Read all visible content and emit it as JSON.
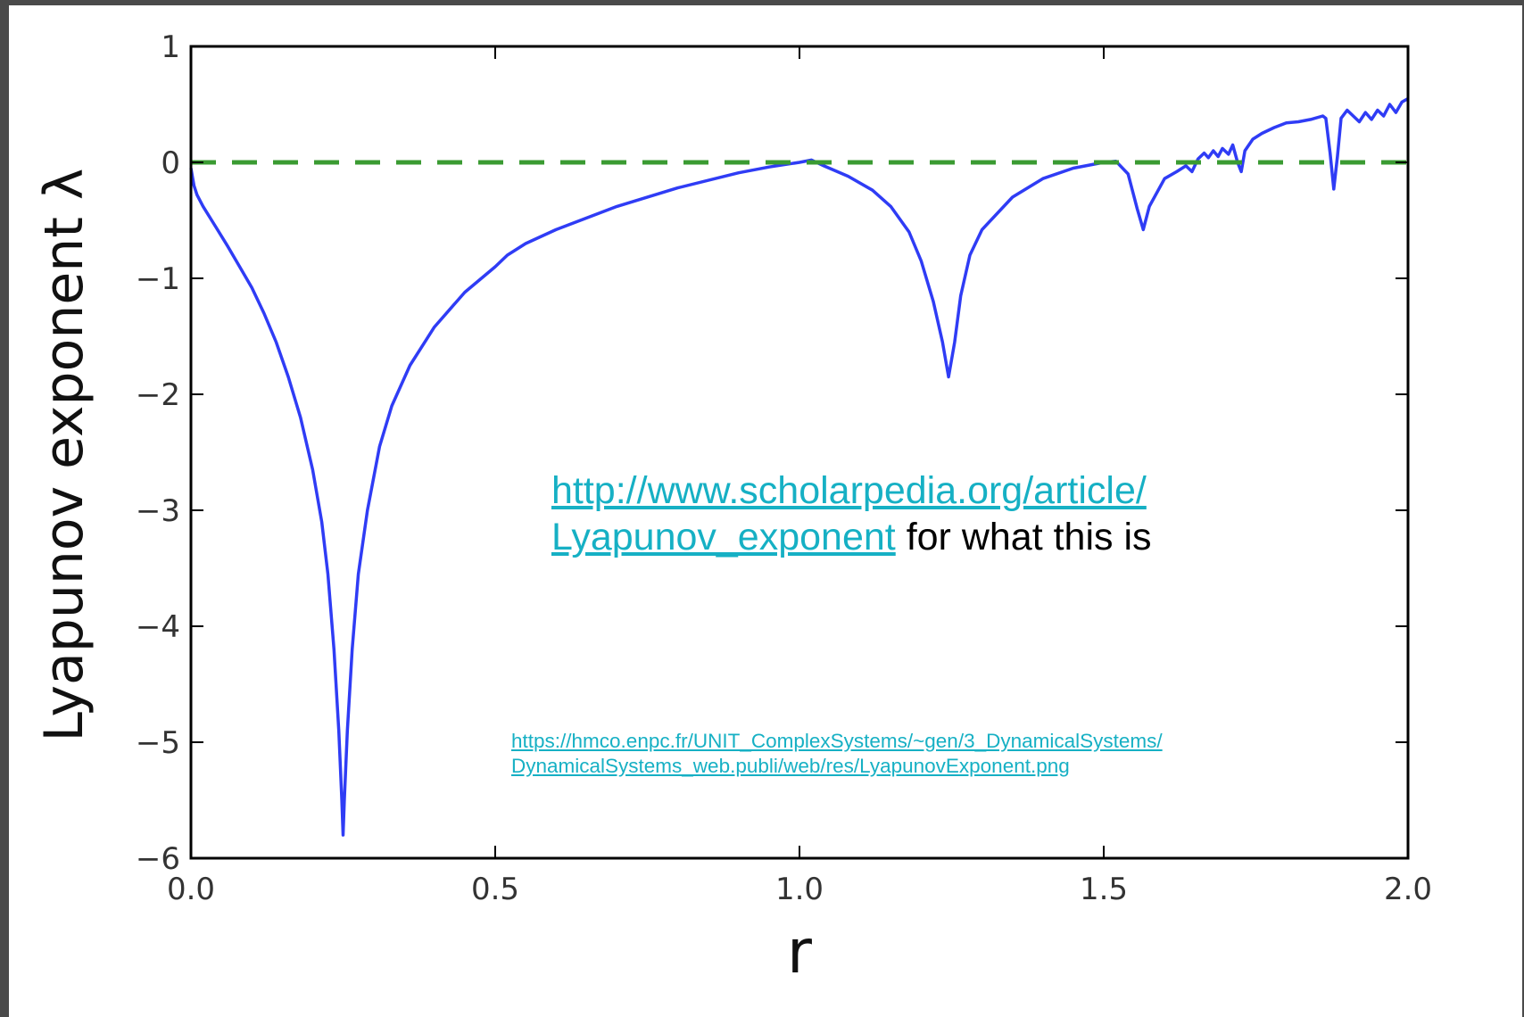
{
  "chart_data": {
    "type": "line",
    "xlabel": "r",
    "ylabel": "Lyapunov exponent λ",
    "xlim": [
      0,
      2
    ],
    "ylim": [
      -6,
      1
    ],
    "x_ticks": [
      "0.0",
      "0.5",
      "1.0",
      "1.5",
      "2.0"
    ],
    "y_ticks": [
      "−6",
      "−5",
      "−4",
      "−3",
      "−2",
      "−1",
      "0",
      "1"
    ],
    "grid": false,
    "series": [
      {
        "color": "#2f3cf5",
        "points": [
          [
            0.0,
            -0.05
          ],
          [
            0.005,
            -0.2
          ],
          [
            0.01,
            -0.28
          ],
          [
            0.02,
            -0.38
          ],
          [
            0.04,
            -0.55
          ],
          [
            0.06,
            -0.72
          ],
          [
            0.08,
            -0.9
          ],
          [
            0.1,
            -1.08
          ],
          [
            0.12,
            -1.3
          ],
          [
            0.14,
            -1.55
          ],
          [
            0.16,
            -1.85
          ],
          [
            0.18,
            -2.2
          ],
          [
            0.2,
            -2.65
          ],
          [
            0.215,
            -3.1
          ],
          [
            0.225,
            -3.55
          ],
          [
            0.235,
            -4.2
          ],
          [
            0.243,
            -4.9
          ],
          [
            0.248,
            -5.5
          ],
          [
            0.25,
            -5.8
          ],
          [
            0.252,
            -5.5
          ],
          [
            0.257,
            -4.9
          ],
          [
            0.265,
            -4.2
          ],
          [
            0.275,
            -3.55
          ],
          [
            0.29,
            -3.0
          ],
          [
            0.31,
            -2.45
          ],
          [
            0.33,
            -2.1
          ],
          [
            0.36,
            -1.75
          ],
          [
            0.4,
            -1.42
          ],
          [
            0.45,
            -1.12
          ],
          [
            0.5,
            -0.9
          ],
          [
            0.52,
            -0.8
          ],
          [
            0.55,
            -0.7
          ],
          [
            0.6,
            -0.58
          ],
          [
            0.7,
            -0.38
          ],
          [
            0.8,
            -0.22
          ],
          [
            0.9,
            -0.09
          ],
          [
            0.95,
            -0.04
          ],
          [
            1.0,
            0.0
          ],
          [
            1.02,
            0.02
          ],
          [
            1.04,
            -0.03
          ],
          [
            1.08,
            -0.12
          ],
          [
            1.12,
            -0.24
          ],
          [
            1.15,
            -0.38
          ],
          [
            1.18,
            -0.6
          ],
          [
            1.2,
            -0.85
          ],
          [
            1.22,
            -1.2
          ],
          [
            1.235,
            -1.55
          ],
          [
            1.245,
            -1.85
          ],
          [
            1.255,
            -1.55
          ],
          [
            1.265,
            -1.15
          ],
          [
            1.28,
            -0.8
          ],
          [
            1.3,
            -0.58
          ],
          [
            1.35,
            -0.3
          ],
          [
            1.4,
            -0.14
          ],
          [
            1.45,
            -0.05
          ],
          [
            1.5,
            0.0
          ],
          [
            1.52,
            0.01
          ],
          [
            1.54,
            -0.1
          ],
          [
            1.555,
            -0.4
          ],
          [
            1.565,
            -0.58
          ],
          [
            1.575,
            -0.38
          ],
          [
            1.6,
            -0.14
          ],
          [
            1.62,
            -0.08
          ],
          [
            1.635,
            -0.03
          ],
          [
            1.645,
            -0.08
          ],
          [
            1.655,
            0.03
          ],
          [
            1.665,
            0.08
          ],
          [
            1.672,
            0.04
          ],
          [
            1.68,
            0.1
          ],
          [
            1.688,
            0.05
          ],
          [
            1.695,
            0.12
          ],
          [
            1.705,
            0.07
          ],
          [
            1.712,
            0.15
          ],
          [
            1.72,
            0.0
          ],
          [
            1.726,
            -0.08
          ],
          [
            1.732,
            0.1
          ],
          [
            1.745,
            0.2
          ],
          [
            1.76,
            0.25
          ],
          [
            1.78,
            0.3
          ],
          [
            1.8,
            0.34
          ],
          [
            1.82,
            0.35
          ],
          [
            1.84,
            0.37
          ],
          [
            1.86,
            0.4
          ],
          [
            1.865,
            0.38
          ],
          [
            1.872,
            0.08
          ],
          [
            1.878,
            -0.23
          ],
          [
            1.884,
            0.05
          ],
          [
            1.89,
            0.38
          ],
          [
            1.9,
            0.45
          ],
          [
            1.91,
            0.4
          ],
          [
            1.92,
            0.35
          ],
          [
            1.93,
            0.43
          ],
          [
            1.94,
            0.37
          ],
          [
            1.95,
            0.45
          ],
          [
            1.96,
            0.4
          ],
          [
            1.97,
            0.5
          ],
          [
            1.98,
            0.43
          ],
          [
            1.99,
            0.52
          ],
          [
            2.0,
            0.55
          ]
        ]
      },
      {
        "color": "#3a9b32",
        "dashed": true,
        "points": [
          [
            0,
            0
          ],
          [
            2,
            0
          ]
        ]
      }
    ]
  },
  "annotations": {
    "note_link": "http://www.scholarpedia.org/article/ Lyapunov_exponent",
    "note_link_line1": "http://www.scholarpedia.org/article/",
    "note_link_line2": "Lyapunov_exponent",
    "note_suffix": " for what this is",
    "source_line1": "https://hmco.enpc.fr/UNIT_ComplexSystems/~gen/3_DynamicalSystems/",
    "source_line2": "DynamicalSystems_web.publi/web/res/LyapunovExponent.png"
  }
}
